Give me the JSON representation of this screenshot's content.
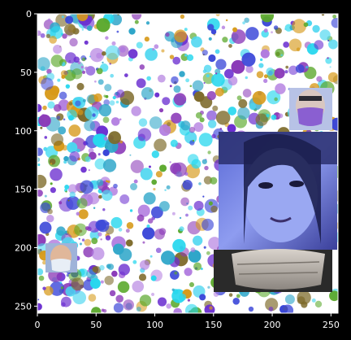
{
  "colors": {
    "background": "#000000",
    "axis": "#ffffff",
    "tick_label": "#ffffff",
    "dot_palette": [
      "#27d7ee",
      "#3a46d8",
      "#6b2fd0",
      "#8b3ab8",
      "#5aa82b",
      "#d79a1a",
      "#2fa6c9",
      "#4bd6f0",
      "#7d6a2a",
      "#b07adf"
    ]
  },
  "plot": {
    "x_ticks": [
      "0",
      "50",
      "100",
      "150",
      "200",
      "250"
    ],
    "x_tick_values": [
      0,
      50,
      100,
      150,
      200,
      250
    ],
    "y_ticks": [
      "0",
      "50",
      "100",
      "150",
      "200",
      "250"
    ],
    "y_tick_values": [
      0,
      50,
      100,
      150,
      200,
      250
    ],
    "x_range": [
      0,
      256
    ],
    "y_range": [
      0,
      256
    ]
  },
  "image_content": {
    "background": "white with multicolored confetti dots",
    "photos": [
      {
        "name": "large-face-photo",
        "description": "woman face with face mask below",
        "tint": "blue"
      },
      {
        "name": "small-masked-face-top-right",
        "description": "person wearing purple mask"
      },
      {
        "name": "small-masked-face-left",
        "description": "person wearing light mask"
      }
    ]
  }
}
